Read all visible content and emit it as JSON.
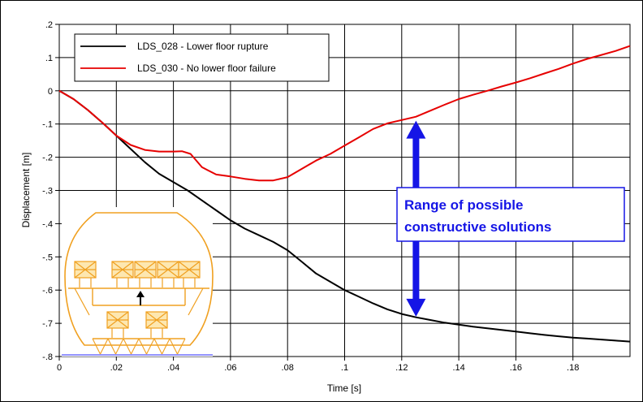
{
  "chart_data": {
    "type": "line",
    "title": "",
    "xlabel": "Time [s]",
    "ylabel": "Displacement [m]",
    "xlim": [
      0,
      0.2
    ],
    "ylim": [
      -0.8,
      0.2
    ],
    "x_ticks": [
      {
        "value": 0,
        "label": "0"
      },
      {
        "value": 0.02,
        "label": ".02"
      },
      {
        "value": 0.04,
        "label": ".04"
      },
      {
        "value": 0.06,
        "label": ".06"
      },
      {
        "value": 0.08,
        "label": ".08"
      },
      {
        "value": 0.1,
        "label": ".1"
      },
      {
        "value": 0.12,
        "label": ".12"
      },
      {
        "value": 0.14,
        "label": ".14"
      },
      {
        "value": 0.16,
        "label": ".16"
      },
      {
        "value": 0.18,
        "label": ".18"
      }
    ],
    "y_ticks": [
      {
        "value": 0.2,
        "label": ".2"
      },
      {
        "value": 0.1,
        "label": ".1"
      },
      {
        "value": 0,
        "label": "0"
      },
      {
        "value": -0.1,
        "label": "-.1"
      },
      {
        "value": -0.2,
        "label": "-.2"
      },
      {
        "value": -0.3,
        "label": "-.3"
      },
      {
        "value": -0.4,
        "label": "-.4"
      },
      {
        "value": -0.5,
        "label": "-.5"
      },
      {
        "value": -0.6,
        "label": "-.6"
      },
      {
        "value": -0.7,
        "label": "-.7"
      },
      {
        "value": -0.8,
        "label": "-.8"
      }
    ],
    "grid": true,
    "legend_position": "top-left",
    "series": [
      {
        "name": "LDS_028 - Lower floor rupture",
        "color": "#000000",
        "points": [
          [
            0,
            0
          ],
          [
            0.005,
            -0.025
          ],
          [
            0.01,
            -0.058
          ],
          [
            0.015,
            -0.095
          ],
          [
            0.02,
            -0.135
          ],
          [
            0.025,
            -0.175
          ],
          [
            0.03,
            -0.215
          ],
          [
            0.035,
            -0.25
          ],
          [
            0.04,
            -0.275
          ],
          [
            0.045,
            -0.3
          ],
          [
            0.05,
            -0.33
          ],
          [
            0.055,
            -0.36
          ],
          [
            0.06,
            -0.39
          ],
          [
            0.065,
            -0.415
          ],
          [
            0.07,
            -0.435
          ],
          [
            0.075,
            -0.455
          ],
          [
            0.08,
            -0.48
          ],
          [
            0.085,
            -0.515
          ],
          [
            0.09,
            -0.55
          ],
          [
            0.095,
            -0.575
          ],
          [
            0.1,
            -0.6
          ],
          [
            0.105,
            -0.62
          ],
          [
            0.11,
            -0.64
          ],
          [
            0.115,
            -0.658
          ],
          [
            0.12,
            -0.672
          ],
          [
            0.125,
            -0.682
          ],
          [
            0.13,
            -0.69
          ],
          [
            0.135,
            -0.698
          ],
          [
            0.14,
            -0.704
          ],
          [
            0.145,
            -0.71
          ],
          [
            0.15,
            -0.715
          ],
          [
            0.155,
            -0.72
          ],
          [
            0.16,
            -0.725
          ],
          [
            0.165,
            -0.73
          ],
          [
            0.17,
            -0.735
          ],
          [
            0.175,
            -0.739
          ],
          [
            0.18,
            -0.743
          ],
          [
            0.185,
            -0.746
          ],
          [
            0.19,
            -0.749
          ],
          [
            0.195,
            -0.752
          ],
          [
            0.2,
            -0.755
          ]
        ]
      },
      {
        "name": "LDS_030 - No lower floor failure",
        "color": "#e60000",
        "points": [
          [
            0,
            0
          ],
          [
            0.005,
            -0.025
          ],
          [
            0.01,
            -0.058
          ],
          [
            0.015,
            -0.095
          ],
          [
            0.02,
            -0.135
          ],
          [
            0.025,
            -0.163
          ],
          [
            0.03,
            -0.178
          ],
          [
            0.035,
            -0.183
          ],
          [
            0.04,
            -0.183
          ],
          [
            0.043,
            -0.182
          ],
          [
            0.046,
            -0.19
          ],
          [
            0.05,
            -0.23
          ],
          [
            0.055,
            -0.252
          ],
          [
            0.06,
            -0.258
          ],
          [
            0.065,
            -0.265
          ],
          [
            0.07,
            -0.27
          ],
          [
            0.075,
            -0.27
          ],
          [
            0.08,
            -0.26
          ],
          [
            0.085,
            -0.235
          ],
          [
            0.09,
            -0.21
          ],
          [
            0.095,
            -0.19
          ],
          [
            0.1,
            -0.165
          ],
          [
            0.105,
            -0.14
          ],
          [
            0.11,
            -0.115
          ],
          [
            0.115,
            -0.098
          ],
          [
            0.12,
            -0.088
          ],
          [
            0.125,
            -0.078
          ],
          [
            0.13,
            -0.06
          ],
          [
            0.135,
            -0.042
          ],
          [
            0.14,
            -0.025
          ],
          [
            0.145,
            -0.012
          ],
          [
            0.15,
            0.0
          ],
          [
            0.155,
            0.013
          ],
          [
            0.16,
            0.025
          ],
          [
            0.165,
            0.038
          ],
          [
            0.17,
            0.052
          ],
          [
            0.175,
            0.066
          ],
          [
            0.18,
            0.082
          ],
          [
            0.185,
            0.096
          ],
          [
            0.19,
            0.108
          ],
          [
            0.195,
            0.12
          ],
          [
            0.2,
            0.135
          ]
        ]
      }
    ],
    "annotations": [
      {
        "text_lines": [
          "Range of possible",
          "constructive solutions"
        ],
        "arrow_x": 0.125,
        "arrow_from_y": -0.09,
        "arrow_to_y": -0.68,
        "color": "#1515e6"
      }
    ],
    "inset_image": "lower floor cross-section schematic with upward arrow"
  }
}
